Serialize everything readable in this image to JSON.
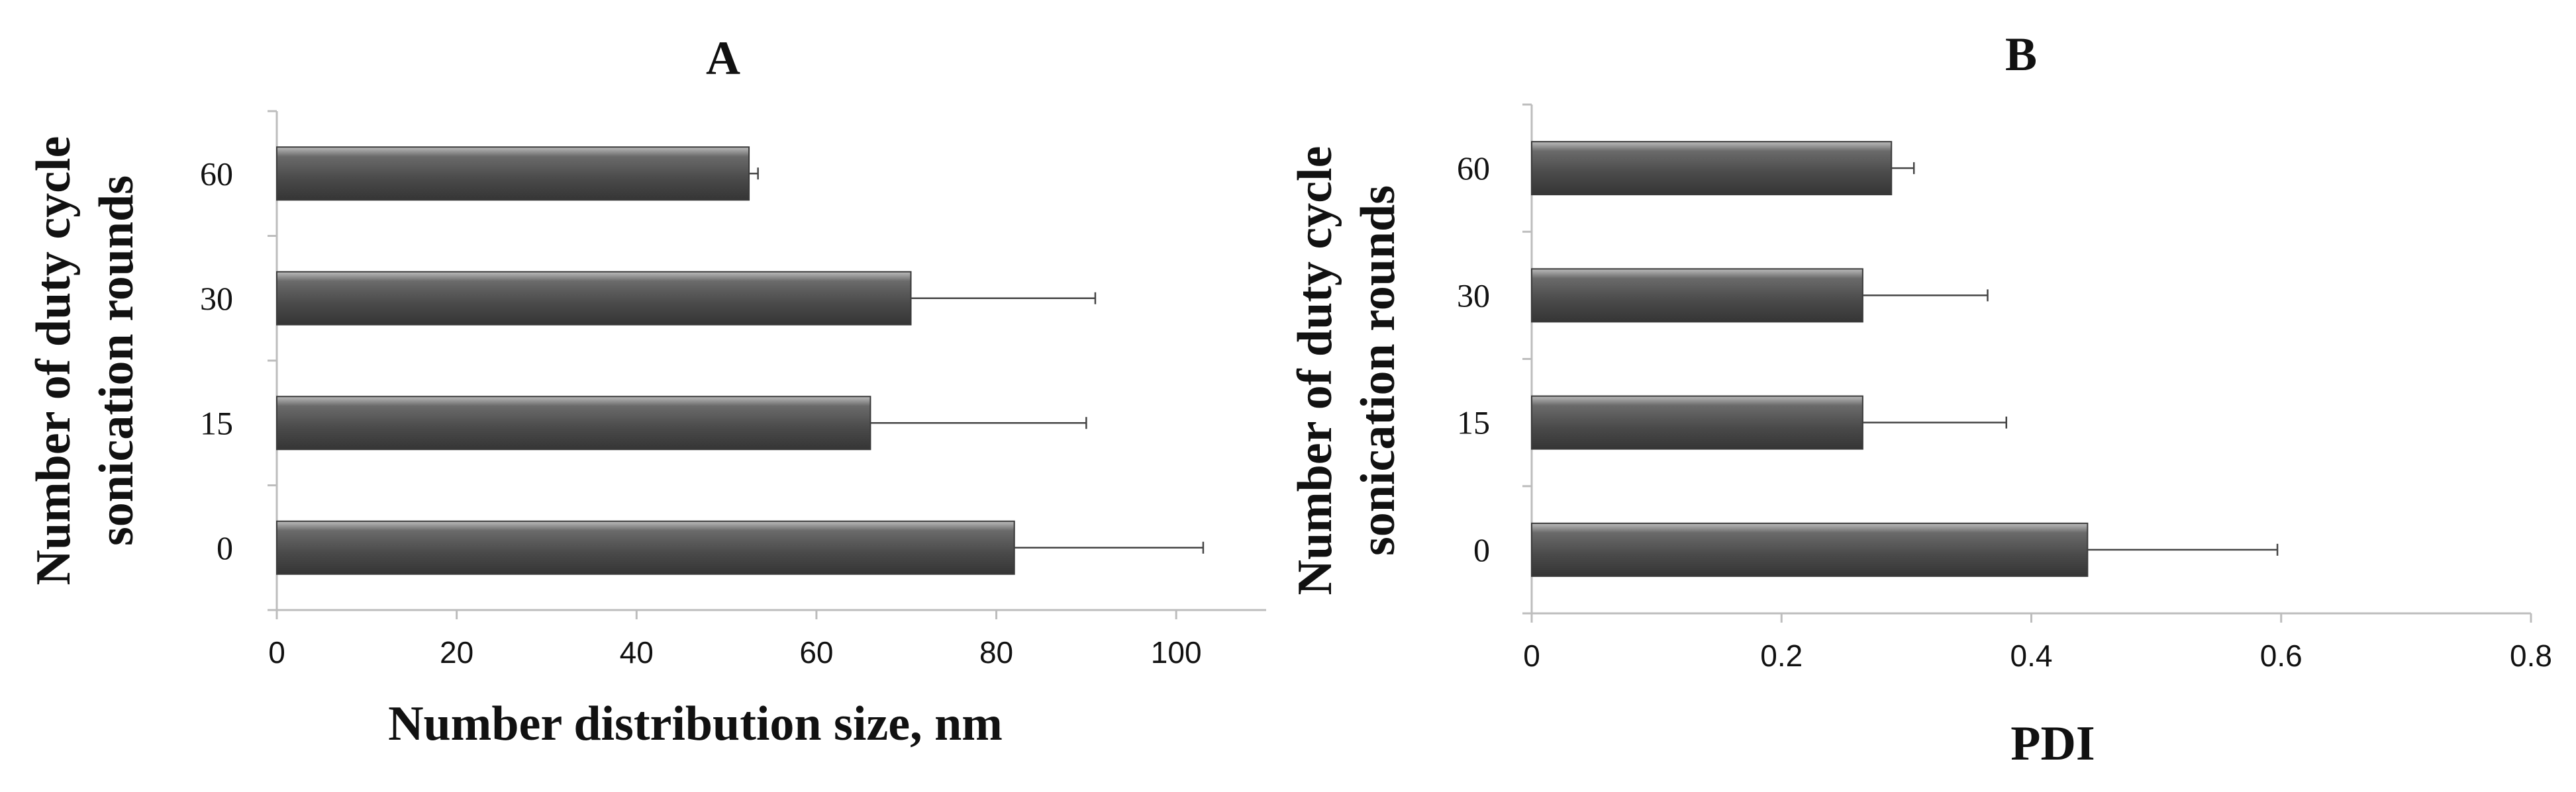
{
  "chart_data": [
    {
      "type": "bar",
      "orientation": "horizontal",
      "title": "A",
      "xlabel": "Number distribution size, nm",
      "ylabel": "Number of duty cycle sonication rounds",
      "ylabel_lines": [
        "Number of duty cycle",
        "sonication rounds"
      ],
      "categories": [
        "0",
        "15",
        "30",
        "60"
      ],
      "values": [
        82,
        66,
        70.5,
        52.5
      ],
      "errors": [
        21,
        24,
        20.5,
        1
      ],
      "xlim": [
        0,
        110
      ],
      "xticks": [
        0,
        20,
        40,
        60,
        80,
        100
      ],
      "xtick_labels": [
        "0",
        "20",
        "40",
        "60",
        "80",
        "100"
      ],
      "bar_color": "#555555",
      "grid": false,
      "legend": "none"
    },
    {
      "type": "bar",
      "orientation": "horizontal",
      "title": "B",
      "xlabel": "PDI",
      "ylabel": "Number of duty cycle sonication rounds",
      "ylabel_lines": [
        "Number of duty cycle",
        "sonication rounds"
      ],
      "categories": [
        "0",
        "15",
        "30",
        "60"
      ],
      "values": [
        0.445,
        0.265,
        0.265,
        0.288
      ],
      "errors": [
        0.152,
        0.115,
        0.1,
        0.018
      ],
      "xlim": [
        0,
        0.8
      ],
      "xticks": [
        0,
        0.2,
        0.4,
        0.6,
        0.8
      ],
      "xtick_labels": [
        "0",
        "0.2",
        "0.4",
        "0.6",
        "0.8"
      ],
      "bar_color": "#555555",
      "grid": false,
      "legend": "none"
    }
  ]
}
